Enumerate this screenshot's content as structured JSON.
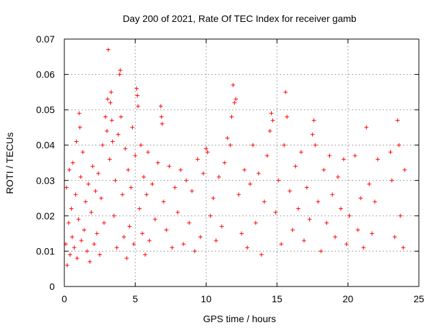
{
  "chart_data": {
    "type": "scatter",
    "title": "Day 200 of 2021, Rate Of TEC Index for receiver gamb",
    "xlabel": "GPS time / hours",
    "ylabel": "ROTI / TECUs",
    "xlim": [
      0,
      25
    ],
    "ylim": [
      0,
      0.07
    ],
    "xticks": [
      0,
      5,
      10,
      15,
      20,
      25
    ],
    "xtick_labels": [
      "0",
      "5",
      "10",
      "15",
      "20",
      "25"
    ],
    "yticks": [
      0,
      0.01,
      0.02,
      0.03,
      0.04,
      0.05,
      0.06,
      0.07
    ],
    "ytick_labels": [
      "0",
      "0.01",
      "0.02",
      "0.03",
      "0.04",
      "0.05",
      "0.06",
      "0.07"
    ],
    "grid": true,
    "marker": "+",
    "color": "#ff0000",
    "series": [
      {
        "name": "ROTI",
        "points": [
          [
            0.1,
            0.012
          ],
          [
            0.15,
            0.028
          ],
          [
            0.2,
            0.006
          ],
          [
            0.3,
            0.018
          ],
          [
            0.35,
            0.033
          ],
          [
            0.4,
            0.009
          ],
          [
            0.5,
            0.022
          ],
          [
            0.55,
            0.014
          ],
          [
            0.6,
            0.035
          ],
          [
            0.7,
            0.011
          ],
          [
            0.8,
            0.026
          ],
          [
            0.85,
            0.041
          ],
          [
            0.9,
            0.008
          ],
          [
            1.0,
            0.019
          ],
          [
            1.05,
            0.049
          ],
          [
            1.1,
            0.045
          ],
          [
            1.15,
            0.031
          ],
          [
            1.2,
            0.013
          ],
          [
            1.3,
            0.038
          ],
          [
            1.4,
            0.016
          ],
          [
            1.5,
            0.024
          ],
          [
            1.6,
            0.01
          ],
          [
            1.7,
            0.029
          ],
          [
            1.8,
            0.007
          ],
          [
            1.9,
            0.021
          ],
          [
            2.0,
            0.034
          ],
          [
            2.1,
            0.012
          ],
          [
            2.2,
            0.027
          ],
          [
            2.3,
            0.015
          ],
          [
            2.4,
            0.032
          ],
          [
            2.5,
            0.009
          ],
          [
            2.6,
            0.025
          ],
          [
            2.7,
            0.04
          ],
          [
            2.8,
            0.018
          ],
          [
            2.9,
            0.048
          ],
          [
            3.0,
            0.044
          ],
          [
            3.05,
            0.053
          ],
          [
            3.1,
            0.067
          ],
          [
            3.2,
            0.036
          ],
          [
            3.25,
            0.052
          ],
          [
            3.3,
            0.055
          ],
          [
            3.35,
            0.047
          ],
          [
            3.4,
            0.041
          ],
          [
            3.5,
            0.02
          ],
          [
            3.6,
            0.03
          ],
          [
            3.7,
            0.011
          ],
          [
            3.8,
            0.043
          ],
          [
            3.9,
            0.06
          ],
          [
            3.95,
            0.0612
          ],
          [
            4.0,
            0.048
          ],
          [
            4.1,
            0.026
          ],
          [
            4.2,
            0.014
          ],
          [
            4.3,
            0.039
          ],
          [
            4.4,
            0.008
          ],
          [
            4.5,
            0.033
          ],
          [
            4.6,
            0.017
          ],
          [
            4.7,
            0.028
          ],
          [
            4.8,
            0.045
          ],
          [
            4.9,
            0.012
          ],
          [
            5.0,
            0.037
          ],
          [
            5.1,
            0.056
          ],
          [
            5.15,
            0.054
          ],
          [
            5.2,
            0.051
          ],
          [
            5.3,
            0.022
          ],
          [
            5.4,
            0.04
          ],
          [
            5.5,
            0.015
          ],
          [
            5.6,
            0.031
          ],
          [
            5.7,
            0.009
          ],
          [
            5.8,
            0.026
          ],
          [
            5.9,
            0.038
          ],
          [
            6.0,
            0.013
          ],
          [
            6.2,
            0.029
          ],
          [
            6.4,
            0.019
          ],
          [
            6.6,
            0.035
          ],
          [
            6.8,
            0.051
          ],
          [
            6.85,
            0.048
          ],
          [
            6.9,
            0.046
          ],
          [
            7.0,
            0.024
          ],
          [
            7.2,
            0.016
          ],
          [
            7.4,
            0.034
          ],
          [
            7.6,
            0.011
          ],
          [
            7.8,
            0.028
          ],
          [
            8.0,
            0.021
          ],
          [
            8.2,
            0.033
          ],
          [
            8.4,
            0.012
          ],
          [
            8.6,
            0.03
          ],
          [
            8.8,
            0.018
          ],
          [
            9.0,
            0.027
          ],
          [
            9.2,
            0.01
          ],
          [
            9.4,
            0.036
          ],
          [
            9.6,
            0.014
          ],
          [
            9.8,
            0.032
          ],
          [
            10.0,
            0.039
          ],
          [
            10.1,
            0.038
          ],
          [
            10.3,
            0.02
          ],
          [
            10.5,
            0.025
          ],
          [
            10.7,
            0.013
          ],
          [
            10.9,
            0.031
          ],
          [
            11.1,
            0.017
          ],
          [
            11.3,
            0.035
          ],
          [
            11.5,
            0.042
          ],
          [
            11.7,
            0.04
          ],
          [
            11.8,
            0.048
          ],
          [
            11.9,
            0.057
          ],
          [
            12.0,
            0.052
          ],
          [
            12.1,
            0.053
          ],
          [
            12.3,
            0.026
          ],
          [
            12.5,
            0.015
          ],
          [
            12.7,
            0.033
          ],
          [
            12.9,
            0.011
          ],
          [
            13.1,
            0.029
          ],
          [
            13.3,
            0.04
          ],
          [
            13.5,
            0.018
          ],
          [
            13.7,
            0.032
          ],
          [
            13.9,
            0.009
          ],
          [
            14.1,
            0.024
          ],
          [
            14.3,
            0.037
          ],
          [
            14.5,
            0.044
          ],
          [
            14.6,
            0.049
          ],
          [
            14.7,
            0.047
          ],
          [
            14.9,
            0.021
          ],
          [
            15.1,
            0.03
          ],
          [
            15.3,
            0.012
          ],
          [
            15.5,
            0.04
          ],
          [
            15.6,
            0.055
          ],
          [
            15.7,
            0.048
          ],
          [
            15.9,
            0.027
          ],
          [
            16.1,
            0.016
          ],
          [
            16.3,
            0.034
          ],
          [
            16.5,
            0.022
          ],
          [
            16.7,
            0.038
          ],
          [
            16.9,
            0.013
          ],
          [
            17.1,
            0.028
          ],
          [
            17.3,
            0.019
          ],
          [
            17.5,
            0.043
          ],
          [
            17.6,
            0.047
          ],
          [
            17.7,
            0.04
          ],
          [
            17.9,
            0.024
          ],
          [
            18.1,
            0.01
          ],
          [
            18.3,
            0.033
          ],
          [
            18.5,
            0.018
          ],
          [
            18.7,
            0.037
          ],
          [
            18.9,
            0.026
          ],
          [
            19.1,
            0.014
          ],
          [
            19.3,
            0.031
          ],
          [
            19.5,
            0.022
          ],
          [
            19.7,
            0.036
          ],
          [
            19.9,
            0.012
          ],
          [
            20.1,
            0.02
          ],
          [
            20.5,
            0.037
          ],
          [
            20.7,
            0.016
          ],
          [
            20.9,
            0.025
          ],
          [
            21.1,
            0.011
          ],
          [
            21.3,
            0.045
          ],
          [
            21.5,
            0.029
          ],
          [
            21.7,
            0.015
          ],
          [
            21.9,
            0.024
          ],
          [
            22.1,
            0.036
          ],
          [
            23.0,
            0.038
          ],
          [
            23.1,
            0.03
          ],
          [
            23.3,
            0.014
          ],
          [
            23.5,
            0.047
          ],
          [
            23.6,
            0.04
          ],
          [
            23.7,
            0.02
          ],
          [
            23.9,
            0.011
          ],
          [
            24.0,
            0.033
          ]
        ]
      }
    ]
  }
}
